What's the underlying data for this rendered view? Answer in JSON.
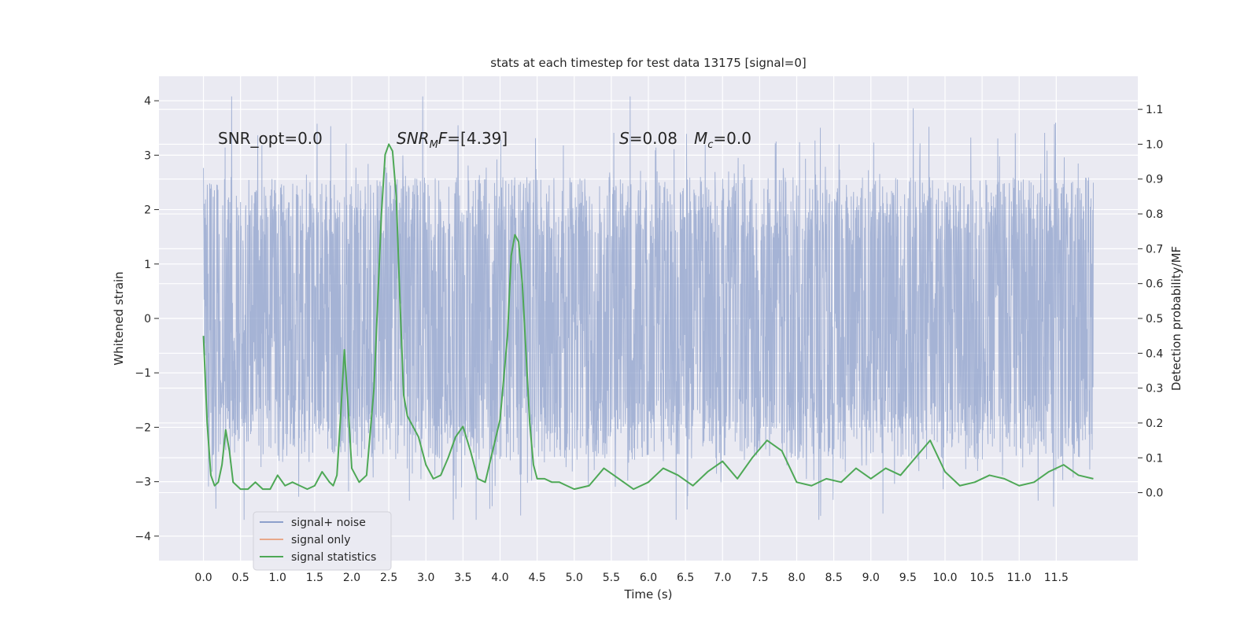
{
  "chart_data": {
    "type": "line",
    "title": "stats at each timestep for test data 13175 [signal=0]",
    "xlabel": "Time (s)",
    "ylabel_left": "Whitened strain",
    "ylabel_right": "Detection probability/MF",
    "xlim": [
      -0.6,
      12.6
    ],
    "ylim_left": [
      -4.45,
      4.45
    ],
    "ylim_right": [
      -0.195,
      1.195
    ],
    "x_ticks": [
      "0.0",
      "0.5",
      "1.0",
      "1.5",
      "2.0",
      "2.5",
      "3.0",
      "3.5",
      "4.0",
      "4.5",
      "5.0",
      "5.5",
      "6.0",
      "6.5",
      "7.0",
      "7.5",
      "8.0",
      "8.5",
      "9.0",
      "9.5",
      "10.0",
      "10.5",
      "11.0",
      "11.5"
    ],
    "y_ticks_left": [
      "−4",
      "−3",
      "−2",
      "−1",
      "0",
      "1",
      "2",
      "3",
      "4"
    ],
    "y_ticks_right": [
      "0.0",
      "0.1",
      "0.2",
      "0.3",
      "0.4",
      "0.5",
      "0.6",
      "0.7",
      "0.8",
      "0.9",
      "1.0",
      "1.1"
    ],
    "grid": true,
    "noise_envelope": {
      "name": "signal+ noise",
      "color": "#8da0cb",
      "t_start": 0.0,
      "t_end": 12.0,
      "dense_band": [
        -1.3,
        1.3
      ],
      "typical_peak_abs": 2.6,
      "max_value": 4.08,
      "min_value": -3.7
    },
    "series": [
      {
        "name": "signal statistics",
        "color": "#4ea856",
        "x": [
          0.0,
          0.05,
          0.1,
          0.15,
          0.2,
          0.25,
          0.3,
          0.35,
          0.4,
          0.5,
          0.6,
          0.7,
          0.8,
          0.9,
          1.0,
          1.1,
          1.2,
          1.3,
          1.4,
          1.5,
          1.6,
          1.7,
          1.75,
          1.8,
          1.85,
          1.9,
          1.95,
          2.0,
          2.1,
          2.2,
          2.3,
          2.4,
          2.45,
          2.5,
          2.55,
          2.6,
          2.65,
          2.7,
          2.75,
          2.8,
          2.9,
          3.0,
          3.1,
          3.2,
          3.3,
          3.4,
          3.5,
          3.6,
          3.7,
          3.8,
          3.9,
          4.0,
          4.1,
          4.15,
          4.2,
          4.25,
          4.3,
          4.35,
          4.4,
          4.45,
          4.5,
          4.6,
          4.7,
          4.8,
          4.9,
          5.0,
          5.2,
          5.4,
          5.6,
          5.8,
          6.0,
          6.2,
          6.4,
          6.6,
          6.8,
          7.0,
          7.2,
          7.4,
          7.6,
          7.8,
          8.0,
          8.2,
          8.4,
          8.6,
          8.8,
          9.0,
          9.2,
          9.4,
          9.6,
          9.8,
          10.0,
          10.2,
          10.4,
          10.6,
          10.8,
          11.0,
          11.2,
          11.4,
          11.6,
          11.8,
          12.0
        ],
        "values": [
          0.45,
          0.2,
          0.05,
          0.02,
          0.03,
          0.08,
          0.18,
          0.12,
          0.03,
          0.01,
          0.01,
          0.03,
          0.01,
          0.01,
          0.05,
          0.02,
          0.03,
          0.02,
          0.01,
          0.02,
          0.06,
          0.03,
          0.02,
          0.05,
          0.22,
          0.41,
          0.25,
          0.07,
          0.03,
          0.05,
          0.3,
          0.8,
          0.97,
          1.0,
          0.98,
          0.85,
          0.55,
          0.28,
          0.22,
          0.2,
          0.16,
          0.08,
          0.04,
          0.05,
          0.1,
          0.16,
          0.19,
          0.12,
          0.04,
          0.03,
          0.12,
          0.21,
          0.45,
          0.68,
          0.74,
          0.72,
          0.6,
          0.4,
          0.2,
          0.08,
          0.04,
          0.04,
          0.03,
          0.03,
          0.02,
          0.01,
          0.02,
          0.07,
          0.04,
          0.01,
          0.03,
          0.07,
          0.05,
          0.02,
          0.06,
          0.09,
          0.04,
          0.1,
          0.15,
          0.12,
          0.03,
          0.02,
          0.04,
          0.03,
          0.07,
          0.04,
          0.07,
          0.05,
          0.1,
          0.15,
          0.06,
          0.02,
          0.03,
          0.05,
          0.04,
          0.02,
          0.03,
          0.06,
          0.08,
          0.05,
          0.04
        ]
      }
    ],
    "legend": [
      {
        "label": "signal+ noise",
        "color": "#8da0cb"
      },
      {
        "label": "signal only",
        "color": "#e8a88a"
      },
      {
        "label": "signal statistics",
        "color": "#4ea856"
      }
    ],
    "legend_position": "lower-left",
    "annotations": {
      "snr_opt": "SNR_opt=0.0",
      "snr_mf_sym": "SNR",
      "snr_mf_sub": "M",
      "snr_mf_rest": "F=[4.39]",
      "s_sym": "S",
      "s_rest": "=0.08",
      "mc_sym": "M",
      "mc_sub": "c",
      "mc_rest": "=0.0"
    }
  }
}
